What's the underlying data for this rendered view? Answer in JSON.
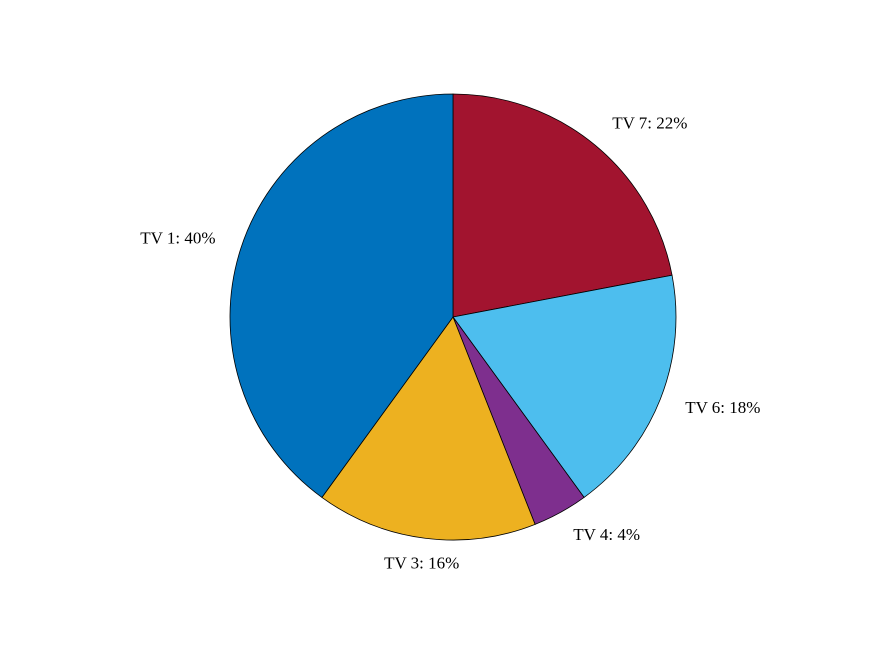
{
  "chart_data": {
    "type": "pie",
    "title": "",
    "direction": "clockwise",
    "start": "top",
    "slices": [
      {
        "label": "TV 7: 22%",
        "value": 22,
        "color": "#A2142F"
      },
      {
        "label": "TV 6: 18%",
        "value": 18,
        "color": "#4DBEEE"
      },
      {
        "label": "TV 4: 4%",
        "value": 4,
        "color": "#7E2F8E"
      },
      {
        "label": "TV 3: 16%",
        "value": 16,
        "color": "#EDB120"
      },
      {
        "label": "TV 1: 40%",
        "value": 40,
        "color": "#0072BD"
      }
    ]
  }
}
